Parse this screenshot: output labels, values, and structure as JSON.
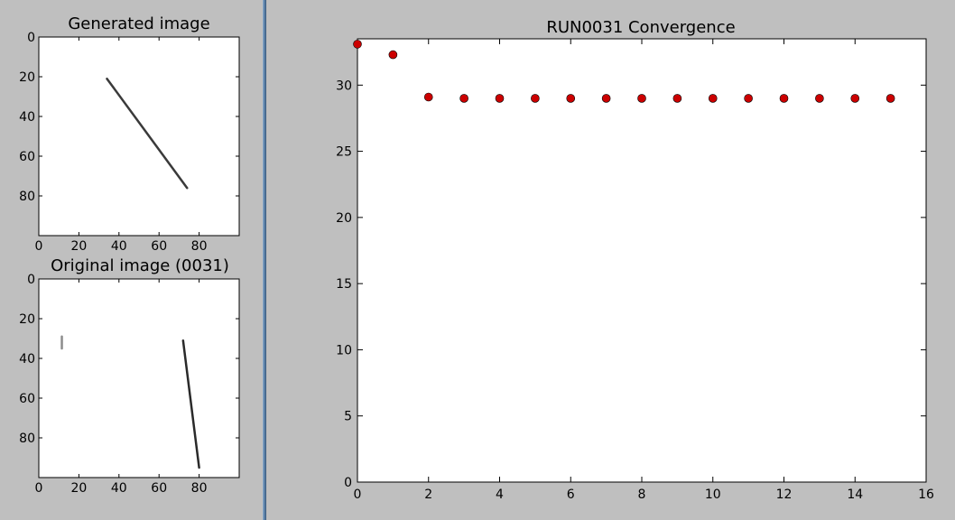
{
  "panels": {
    "generated": {
      "title": "Generated image",
      "x_ticks": [
        "0",
        "20",
        "40",
        "60",
        "80"
      ],
      "y_ticks": [
        "0",
        "20",
        "40",
        "60",
        "80"
      ],
      "stroke_segments": [
        {
          "x1": 34,
          "y1": 21,
          "x2": 74,
          "y2": 76,
          "color": "#3a3a3a"
        }
      ]
    },
    "original": {
      "title": "Original image (0031)",
      "x_ticks": [
        "0",
        "20",
        "40",
        "60",
        "80"
      ],
      "y_ticks": [
        "0",
        "20",
        "40",
        "60",
        "80"
      ],
      "stroke_segments": [
        {
          "x1": 11.5,
          "y1": 29,
          "x2": 11.5,
          "y2": 35,
          "color": "#8c8c8c"
        },
        {
          "x1": 72,
          "y1": 31,
          "x2": 80,
          "y2": 95,
          "color": "#2a2a2a"
        }
      ]
    }
  },
  "chart_data": {
    "type": "scatter",
    "title": "RUN0031 Convergence",
    "xlabel": "",
    "ylabel": "",
    "xlim": [
      0,
      16
    ],
    "ylim": [
      0,
      33.5
    ],
    "x_ticks": [
      "0",
      "2",
      "4",
      "6",
      "8",
      "10",
      "12",
      "14",
      "16"
    ],
    "y_ticks": [
      "0",
      "5",
      "10",
      "15",
      "20",
      "25",
      "30"
    ],
    "marker_color": "#cc0000",
    "series": [
      {
        "x": [
          0,
          1,
          2,
          3,
          4,
          5,
          6,
          7,
          8,
          9,
          10,
          11,
          12,
          13,
          14,
          15
        ],
        "values": [
          33.1,
          32.3,
          29.1,
          29.0,
          29.0,
          29.0,
          29.0,
          29.0,
          29.0,
          29.0,
          29.0,
          29.0,
          29.0,
          29.0,
          29.0,
          29.0
        ]
      }
    ]
  }
}
